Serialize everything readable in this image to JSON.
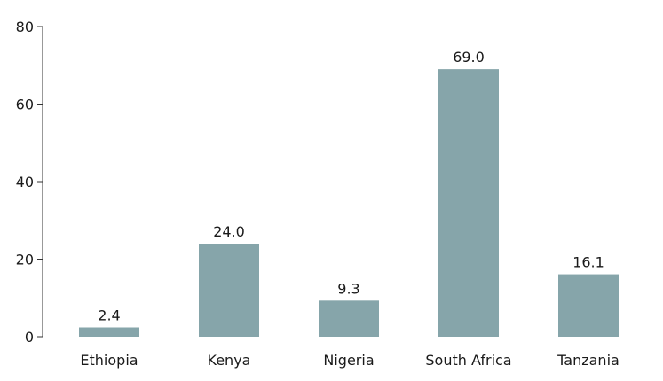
{
  "chart_data": {
    "type": "bar",
    "title": "",
    "xlabel": "",
    "ylabel": "",
    "categories": [
      "Ethiopia",
      "Kenya",
      "Nigeria",
      "South Africa",
      "Tanzania"
    ],
    "values": [
      2.4,
      24.0,
      9.3,
      69.0,
      16.1
    ],
    "value_labels": [
      "2.4",
      "24.0",
      "9.3",
      "69.0",
      "16.1"
    ],
    "ylim": [
      0,
      80
    ],
    "yticks": [
      0,
      20,
      40,
      60,
      80
    ],
    "ytick_labels": [
      "0",
      "20",
      "40",
      "60",
      "80"
    ],
    "grid": false,
    "legend": "none",
    "bar_color": "#86a5aa",
    "text_color": "#1a1a1a",
    "axis_color": "#333333"
  }
}
